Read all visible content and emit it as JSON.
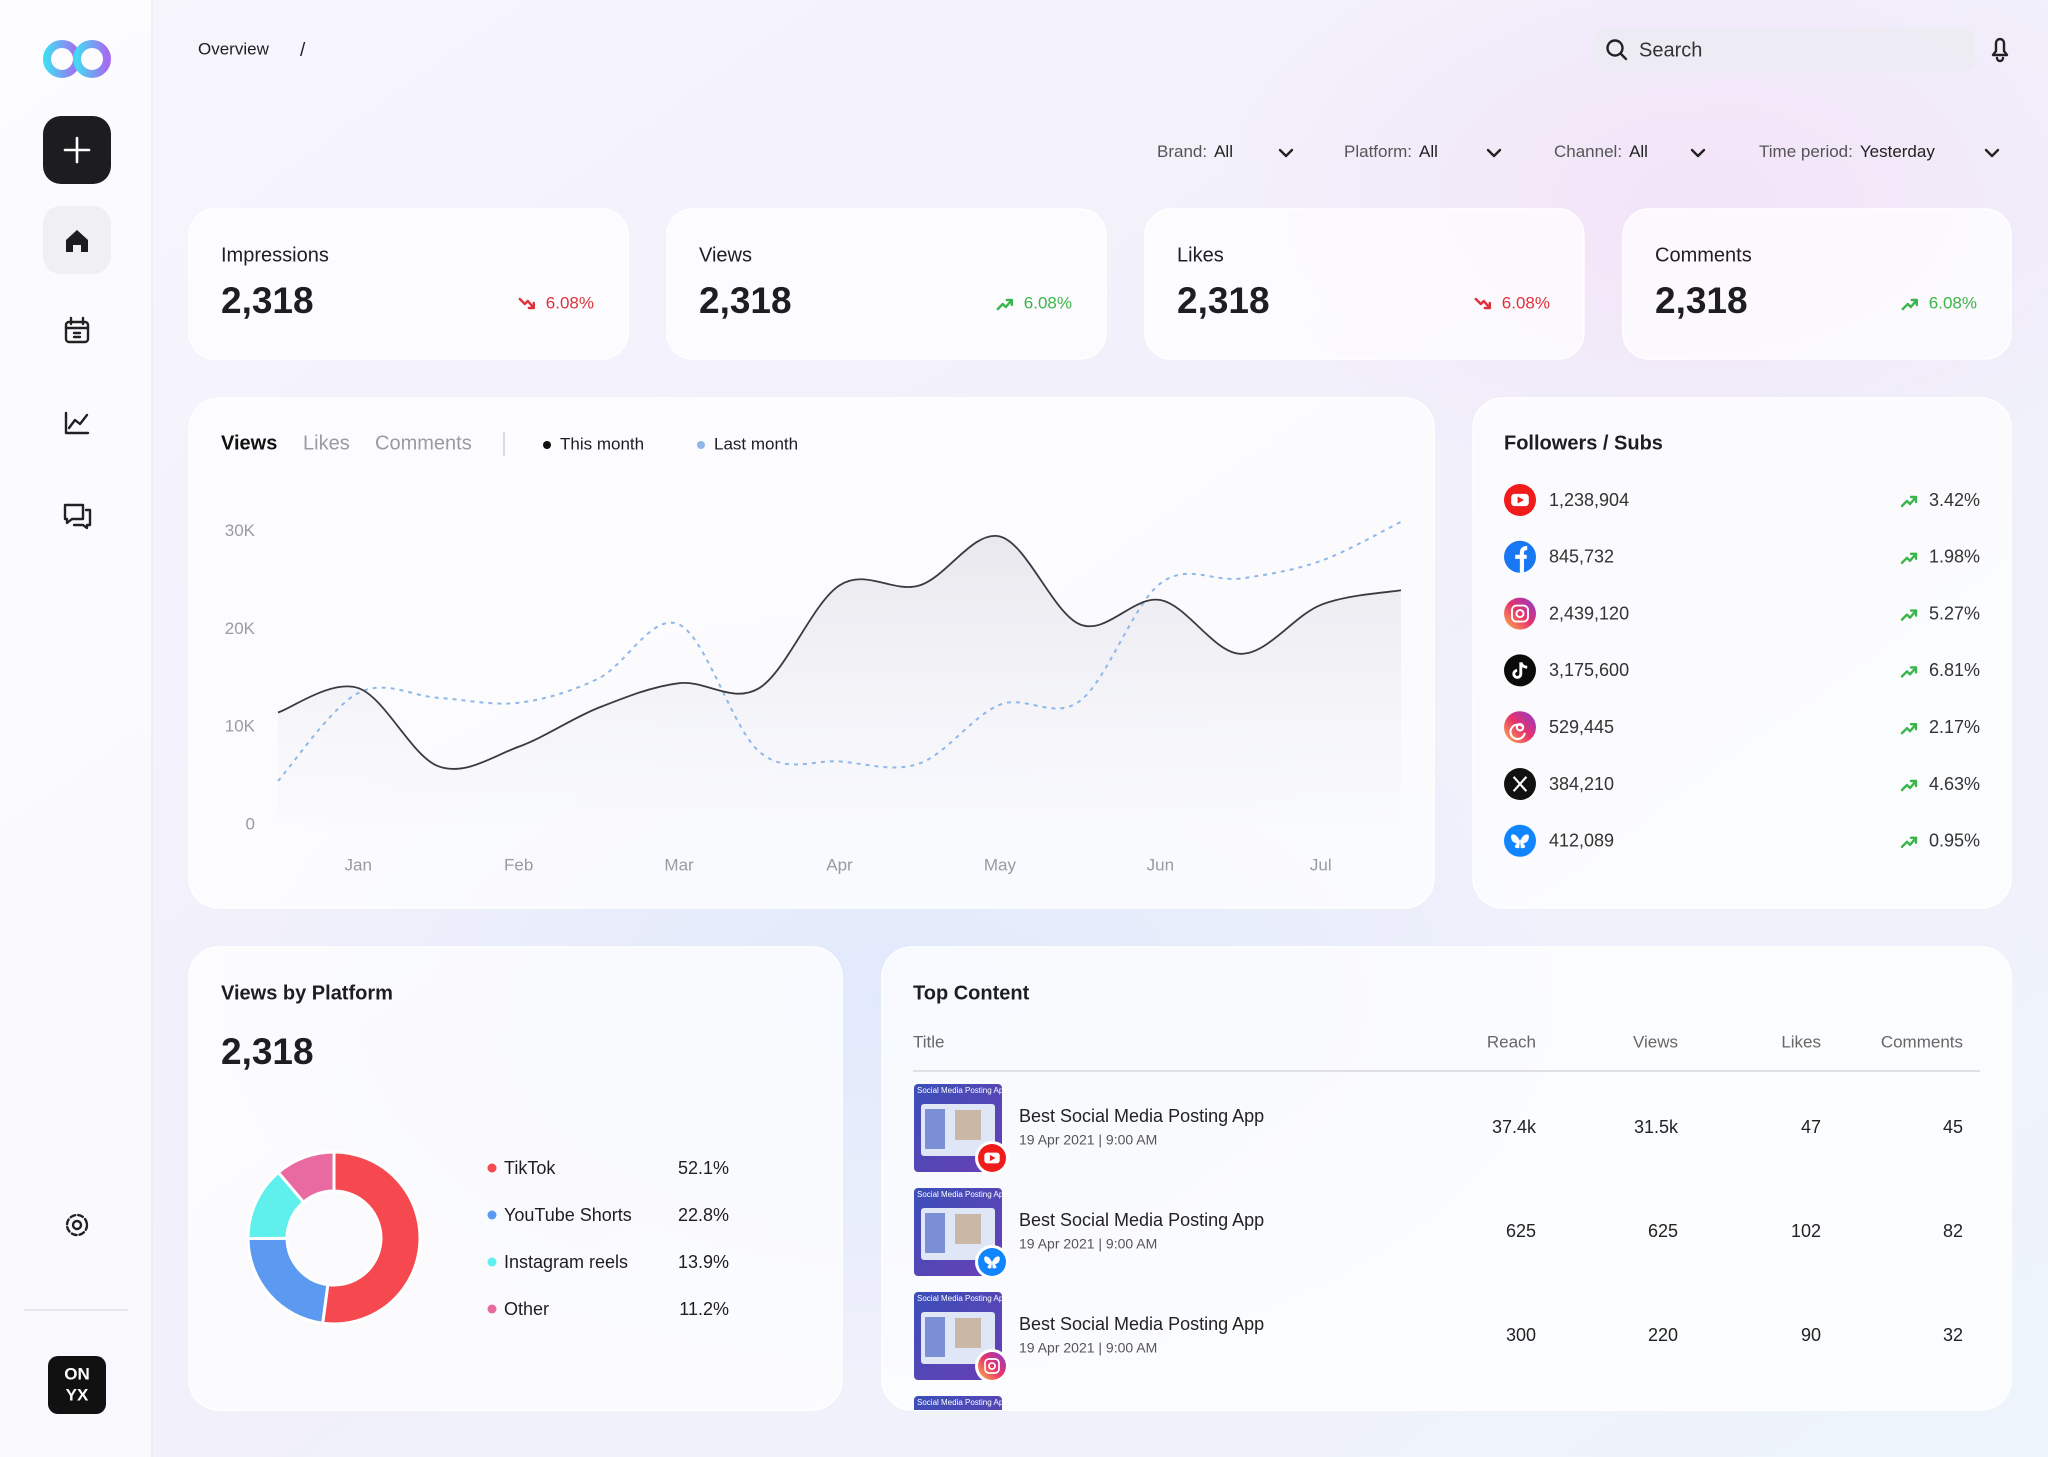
{
  "nav": {
    "breadcrumb": "Overview",
    "separator": "/",
    "search_placeholder": "Search"
  },
  "logo_text": [
    "ON",
    "YX"
  ],
  "filters": [
    {
      "label": "Brand:",
      "value": "All"
    },
    {
      "label": "Platform:",
      "value": "All"
    },
    {
      "label": "Channel:",
      "value": "All"
    },
    {
      "label": "Time period:",
      "value": "Yesterday"
    }
  ],
  "kpis": [
    {
      "label": "Impressions",
      "value": "2,318",
      "change": "6.08%",
      "trend": "down"
    },
    {
      "label": "Views",
      "value": "2,318",
      "change": "6.08%",
      "trend": "up"
    },
    {
      "label": "Likes",
      "value": "2,318",
      "change": "6.08%",
      "trend": "down"
    },
    {
      "label": "Comments",
      "value": "2,318",
      "change": "6.08%",
      "trend": "up"
    }
  ],
  "chart_data": [
    {
      "type": "line",
      "tabs": [
        "Views",
        "Likes",
        "Comments"
      ],
      "active_tab": 0,
      "x": [
        -0.5,
        0,
        0.5,
        1,
        1.5,
        2,
        2.5,
        3,
        3.5,
        4,
        4.5,
        5,
        5.5,
        6,
        6.5
      ],
      "xlim": [
        -0.5,
        6.5
      ],
      "xticks": [
        {
          "value": 0,
          "label": "Jan"
        },
        {
          "value": 1,
          "label": "Feb"
        },
        {
          "value": 2,
          "label": "Mar"
        },
        {
          "value": 3,
          "label": "Apr"
        },
        {
          "value": 4,
          "label": "May"
        },
        {
          "value": 5,
          "label": "Jun"
        },
        {
          "value": 6,
          "label": "Jul"
        }
      ],
      "ylim": [
        0,
        32000
      ],
      "yticks": [
        0,
        {
          "value": 10000,
          "label": "10K"
        },
        {
          "value": 20000,
          "label": "20K"
        },
        {
          "value": 30000,
          "label": "30K"
        }
      ],
      "series": [
        {
          "name": "This month",
          "color": "#3a3a40",
          "line_style": "solid",
          "values": [
            11500,
            14000,
            6000,
            8000,
            12000,
            14500,
            14000,
            24500,
            24500,
            29500,
            20500,
            23000,
            17500,
            22500,
            24000
          ]
        },
        {
          "name": "Last month",
          "color": "#8fb8e8",
          "line_style": "dashed",
          "values": [
            4500,
            13500,
            13000,
            12500,
            15000,
            20500,
            7500,
            6500,
            6300,
            12300,
            12700,
            24700,
            25200,
            27000,
            31000
          ]
        }
      ]
    },
    {
      "type": "pie",
      "donut": true,
      "title": "Views by Platform",
      "total": "2,318",
      "categories": [
        "TikTok",
        "YouTube Shorts",
        "Instagram reels",
        "Other"
      ],
      "values": [
        52.1,
        22.8,
        13.9,
        11.2
      ],
      "value_labels": [
        "52.1%",
        "22.8%",
        "13.9%",
        "11.2%"
      ],
      "colors": [
        "#f5484f",
        "#5b9af0",
        "#5ff0ee",
        "#e86aa0"
      ]
    }
  ],
  "followers": {
    "title": "Followers / Subs",
    "rows": [
      {
        "icon": "youtube",
        "count": "1,238,904",
        "change": "3.42%"
      },
      {
        "icon": "facebook",
        "count": "845,732",
        "change": "1.98%"
      },
      {
        "icon": "instagram",
        "count": "2,439,120",
        "change": "5.27%"
      },
      {
        "icon": "tiktok",
        "count": "3,175,600",
        "change": "6.81%"
      },
      {
        "icon": "threads",
        "count": "529,445",
        "change": "2.17%"
      },
      {
        "icon": "x",
        "count": "384,210",
        "change": "4.63%"
      },
      {
        "icon": "bluesky",
        "count": "412,089",
        "change": "0.95%"
      }
    ]
  },
  "top_content": {
    "title": "Top Content",
    "columns": [
      "Title",
      "Reach",
      "Views",
      "Likes",
      "Comments"
    ],
    "rows": [
      {
        "thumbnail_label": "Social Media Posting App",
        "badge": "youtube",
        "title": "Best Social Media Posting App",
        "date": "19 Apr 2021 | 9:00 AM",
        "reach": "37.4k",
        "views": "31.5k",
        "likes": "47",
        "comments": "45"
      },
      {
        "thumbnail_label": "Social Media Posting App",
        "badge": "bluesky",
        "title": "Best Social Media Posting App",
        "date": "19 Apr 2021 | 9:00 AM",
        "reach": "625",
        "views": "625",
        "likes": "102",
        "comments": "82"
      },
      {
        "thumbnail_label": "Social Media Posting App",
        "badge": "instagram",
        "title": "Best Social Media Posting App",
        "date": "19 Apr 2021 | 9:00 AM",
        "reach": "300",
        "views": "220",
        "likes": "90",
        "comments": "32"
      },
      {
        "thumbnail_label": "Social Media Posting App"
      }
    ]
  }
}
